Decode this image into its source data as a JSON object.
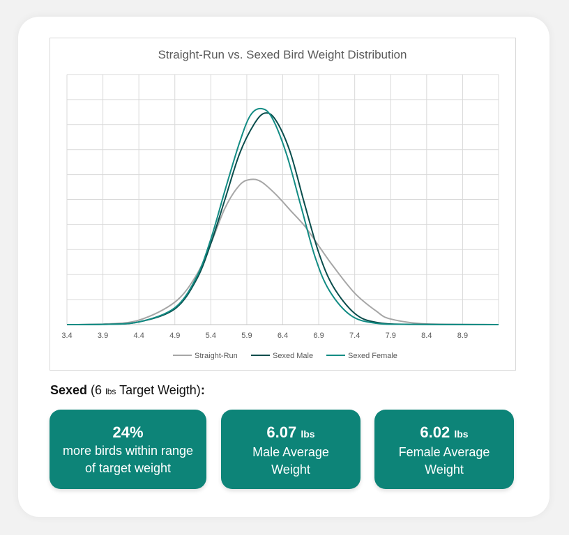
{
  "chart_data": {
    "type": "line",
    "title": "Straight-Run vs. Sexed Bird Weight Distribution",
    "xlabel": "",
    "ylabel": "",
    "x_ticks": [
      "3.4",
      "3.9",
      "4.4",
      "4.9",
      "5.4",
      "5.9",
      "6.4",
      "6.9",
      "7.4",
      "7.9",
      "8.4",
      "8.9"
    ],
    "xlim": [
      3.4,
      9.4
    ],
    "ylim": [
      0,
      1
    ],
    "grid": true,
    "legend_position": "bottom",
    "series": [
      {
        "name": "Straight-Run",
        "color": "#a6a6a6",
        "points": [
          [
            3.4,
            0
          ],
          [
            3.9,
            0.002
          ],
          [
            4.4,
            0.02
          ],
          [
            4.9,
            0.1
          ],
          [
            5.2,
            0.22
          ],
          [
            5.4,
            0.36
          ],
          [
            5.6,
            0.52
          ],
          [
            5.8,
            0.62
          ],
          [
            5.95,
            0.645
          ],
          [
            6.1,
            0.635
          ],
          [
            6.3,
            0.58
          ],
          [
            6.5,
            0.51
          ],
          [
            6.7,
            0.44
          ],
          [
            6.9,
            0.35
          ],
          [
            7.1,
            0.26
          ],
          [
            7.4,
            0.14
          ],
          [
            7.7,
            0.06
          ],
          [
            7.9,
            0.025
          ],
          [
            8.4,
            0.003
          ],
          [
            9.4,
            0
          ]
        ]
      },
      {
        "name": "Sexed Male",
        "color": "#0a4d4c",
        "points": [
          [
            3.4,
            0
          ],
          [
            3.9,
            0.001
          ],
          [
            4.4,
            0.012
          ],
          [
            4.9,
            0.07
          ],
          [
            5.2,
            0.2
          ],
          [
            5.4,
            0.36
          ],
          [
            5.6,
            0.56
          ],
          [
            5.8,
            0.76
          ],
          [
            6.0,
            0.89
          ],
          [
            6.15,
            0.94
          ],
          [
            6.3,
            0.91
          ],
          [
            6.5,
            0.77
          ],
          [
            6.7,
            0.54
          ],
          [
            6.9,
            0.32
          ],
          [
            7.1,
            0.17
          ],
          [
            7.4,
            0.05
          ],
          [
            7.7,
            0.01
          ],
          [
            8.2,
            0.001
          ],
          [
            9.4,
            0
          ]
        ]
      },
      {
        "name": "Sexed Female",
        "color": "#138c84",
        "points": [
          [
            3.4,
            0
          ],
          [
            3.9,
            0.001
          ],
          [
            4.4,
            0.012
          ],
          [
            4.9,
            0.075
          ],
          [
            5.2,
            0.21
          ],
          [
            5.4,
            0.38
          ],
          [
            5.6,
            0.6
          ],
          [
            5.8,
            0.81
          ],
          [
            5.95,
            0.93
          ],
          [
            6.1,
            0.96
          ],
          [
            6.25,
            0.92
          ],
          [
            6.45,
            0.76
          ],
          [
            6.65,
            0.53
          ],
          [
            6.85,
            0.3
          ],
          [
            7.05,
            0.15
          ],
          [
            7.35,
            0.04
          ],
          [
            7.7,
            0.006
          ],
          [
            8.2,
            0.001
          ],
          [
            9.4,
            0
          ]
        ]
      }
    ]
  },
  "section": {
    "bold": "Sexed",
    "open": " (6 ",
    "unit": "lbs",
    "rest": " Target Weigth)",
    "colon": ":"
  },
  "stats": [
    {
      "value": "24%",
      "unit": "",
      "desc1": "more birds within range",
      "desc2": "of target weight"
    },
    {
      "value": "6.07",
      "unit": "lbs",
      "desc1": "Male Average",
      "desc2": "Weight"
    },
    {
      "value": "6.02",
      "unit": "lbs",
      "desc1": "Female Average",
      "desc2": "Weight"
    }
  ],
  "colors": {
    "accent": "#0d8478",
    "card_bg": "#ffffff",
    "page_bg": "#f2f2f2"
  }
}
